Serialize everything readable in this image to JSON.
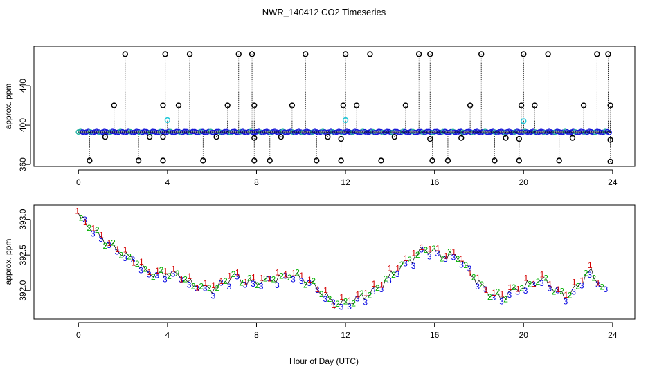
{
  "chart_data": {
    "title": "NWR_140412  CO2 Timeseries",
    "xlabel": "Hour of Day (UTC)",
    "panels": [
      {
        "type": "scatter",
        "ylabel": "approx. ppm",
        "xlim": [
          -2,
          25
        ],
        "ylim": [
          358,
          480
        ],
        "xticks": [
          "0",
          "4",
          "8",
          "12",
          "16",
          "20",
          "24"
        ],
        "xtick_values": [
          0,
          4,
          8,
          12,
          16,
          20,
          24
        ],
        "yticks": [
          "360",
          "400",
          "440"
        ],
        "ytick_values": [
          360,
          400,
          440
        ],
        "baseline": 393,
        "outliers_high": [
          {
            "x": 1.6,
            "y": 420
          },
          {
            "x": 2.1,
            "y": 472
          },
          {
            "x": 3.8,
            "y": 420
          },
          {
            "x": 3.9,
            "y": 472
          },
          {
            "x": 4.5,
            "y": 420
          },
          {
            "x": 5.0,
            "y": 472
          },
          {
            "x": 6.7,
            "y": 420
          },
          {
            "x": 7.2,
            "y": 472
          },
          {
            "x": 7.8,
            "y": 472
          },
          {
            "x": 7.9,
            "y": 420
          },
          {
            "x": 9.6,
            "y": 420
          },
          {
            "x": 10.2,
            "y": 472
          },
          {
            "x": 11.9,
            "y": 420
          },
          {
            "x": 12.0,
            "y": 472
          },
          {
            "x": 12.5,
            "y": 420
          },
          {
            "x": 13.1,
            "y": 472
          },
          {
            "x": 14.7,
            "y": 420
          },
          {
            "x": 15.3,
            "y": 472
          },
          {
            "x": 15.8,
            "y": 472
          },
          {
            "x": 17.6,
            "y": 420
          },
          {
            "x": 18.1,
            "y": 472
          },
          {
            "x": 19.9,
            "y": 420
          },
          {
            "x": 20.0,
            "y": 472
          },
          {
            "x": 20.5,
            "y": 420
          },
          {
            "x": 21.1,
            "y": 472
          },
          {
            "x": 22.7,
            "y": 420
          },
          {
            "x": 23.3,
            "y": 472
          },
          {
            "x": 23.8,
            "y": 472
          },
          {
            "x": 23.9,
            "y": 420
          }
        ],
        "outliers_low": [
          {
            "x": 0.5,
            "y": 364
          },
          {
            "x": 2.7,
            "y": 364
          },
          {
            "x": 3.8,
            "y": 364
          },
          {
            "x": 5.6,
            "y": 364
          },
          {
            "x": 7.9,
            "y": 364
          },
          {
            "x": 8.6,
            "y": 364
          },
          {
            "x": 10.7,
            "y": 364
          },
          {
            "x": 11.8,
            "y": 364
          },
          {
            "x": 13.6,
            "y": 364
          },
          {
            "x": 15.9,
            "y": 364
          },
          {
            "x": 16.6,
            "y": 364
          },
          {
            "x": 18.7,
            "y": 364
          },
          {
            "x": 19.8,
            "y": 364
          },
          {
            "x": 21.6,
            "y": 364
          },
          {
            "x": 23.9,
            "y": 363
          }
        ],
        "outliers_mid": [
          {
            "x": 1.2,
            "y": 388
          },
          {
            "x": 3.2,
            "y": 388
          },
          {
            "x": 3.8,
            "y": 388
          },
          {
            "x": 6.2,
            "y": 388
          },
          {
            "x": 7.9,
            "y": 387
          },
          {
            "x": 9.1,
            "y": 388
          },
          {
            "x": 11.2,
            "y": 388
          },
          {
            "x": 11.8,
            "y": 386
          },
          {
            "x": 14.2,
            "y": 388
          },
          {
            "x": 15.8,
            "y": 386
          },
          {
            "x": 17.2,
            "y": 387
          },
          {
            "x": 19.2,
            "y": 387
          },
          {
            "x": 19.8,
            "y": 386
          },
          {
            "x": 22.2,
            "y": 387
          },
          {
            "x": 23.9,
            "y": 385
          }
        ],
        "cyan_points": [
          {
            "x": 4.0,
            "y": 405
          },
          {
            "x": 12.0,
            "y": 405
          },
          {
            "x": 20.0,
            "y": 404
          }
        ]
      },
      {
        "type": "line-markers",
        "ylabel": "approx. ppm",
        "xlim": [
          -2,
          25
        ],
        "ylim": [
          391.6,
          393.2
        ],
        "xticks": [
          "0",
          "4",
          "8",
          "12",
          "16",
          "20",
          "24"
        ],
        "xtick_values": [
          0,
          4,
          8,
          12,
          16,
          20,
          24
        ],
        "yticks": [
          "392.0",
          "392.5",
          "393.0"
        ],
        "ytick_values": [
          392.0,
          392.5,
          393.0
        ],
        "marker_labels": [
          "1",
          "2",
          "3"
        ],
        "series_colors": [
          "#d40000",
          "#00b000",
          "#0000e0"
        ],
        "trend": [
          {
            "x": 0,
            "y": 393.05
          },
          {
            "x": 0.5,
            "y": 392.9
          },
          {
            "x": 1,
            "y": 392.75
          },
          {
            "x": 1.5,
            "y": 392.62
          },
          {
            "x": 2,
            "y": 392.52
          },
          {
            "x": 2.5,
            "y": 392.42
          },
          {
            "x": 3,
            "y": 392.28
          },
          {
            "x": 3.5,
            "y": 392.22
          },
          {
            "x": 4,
            "y": 392.25
          },
          {
            "x": 4.5,
            "y": 392.22
          },
          {
            "x": 5,
            "y": 392.1
          },
          {
            "x": 5.5,
            "y": 392.05
          },
          {
            "x": 6,
            "y": 392.02
          },
          {
            "x": 6.5,
            "y": 392.1
          },
          {
            "x": 7,
            "y": 392.22
          },
          {
            "x": 7.5,
            "y": 392.12
          },
          {
            "x": 8,
            "y": 392.12
          },
          {
            "x": 8.5,
            "y": 392.15
          },
          {
            "x": 9,
            "y": 392.18
          },
          {
            "x": 9.5,
            "y": 392.22
          },
          {
            "x": 10,
            "y": 392.18
          },
          {
            "x": 10.5,
            "y": 392.1
          },
          {
            "x": 11,
            "y": 391.95
          },
          {
            "x": 11.5,
            "y": 391.82
          },
          {
            "x": 12,
            "y": 391.82
          },
          {
            "x": 12.5,
            "y": 391.88
          },
          {
            "x": 13,
            "y": 391.95
          },
          {
            "x": 13.5,
            "y": 392.05
          },
          {
            "x": 14,
            "y": 392.2
          },
          {
            "x": 14.5,
            "y": 392.35
          },
          {
            "x": 15,
            "y": 392.45
          },
          {
            "x": 15.5,
            "y": 392.58
          },
          {
            "x": 16,
            "y": 392.55
          },
          {
            "x": 16.5,
            "y": 392.48
          },
          {
            "x": 17,
            "y": 392.5
          },
          {
            "x": 17.5,
            "y": 392.3
          },
          {
            "x": 18,
            "y": 392.1
          },
          {
            "x": 18.5,
            "y": 391.95
          },
          {
            "x": 19,
            "y": 391.9
          },
          {
            "x": 19.5,
            "y": 392.0
          },
          {
            "x": 20,
            "y": 392.05
          },
          {
            "x": 20.5,
            "y": 392.12
          },
          {
            "x": 21,
            "y": 392.15
          },
          {
            "x": 21.5,
            "y": 391.98
          },
          {
            "x": 22,
            "y": 391.92
          },
          {
            "x": 22.5,
            "y": 392.1
          },
          {
            "x": 23,
            "y": 392.28
          },
          {
            "x": 23.5,
            "y": 392.05
          },
          {
            "x": 23.7,
            "y": 391.98
          }
        ]
      }
    ]
  }
}
